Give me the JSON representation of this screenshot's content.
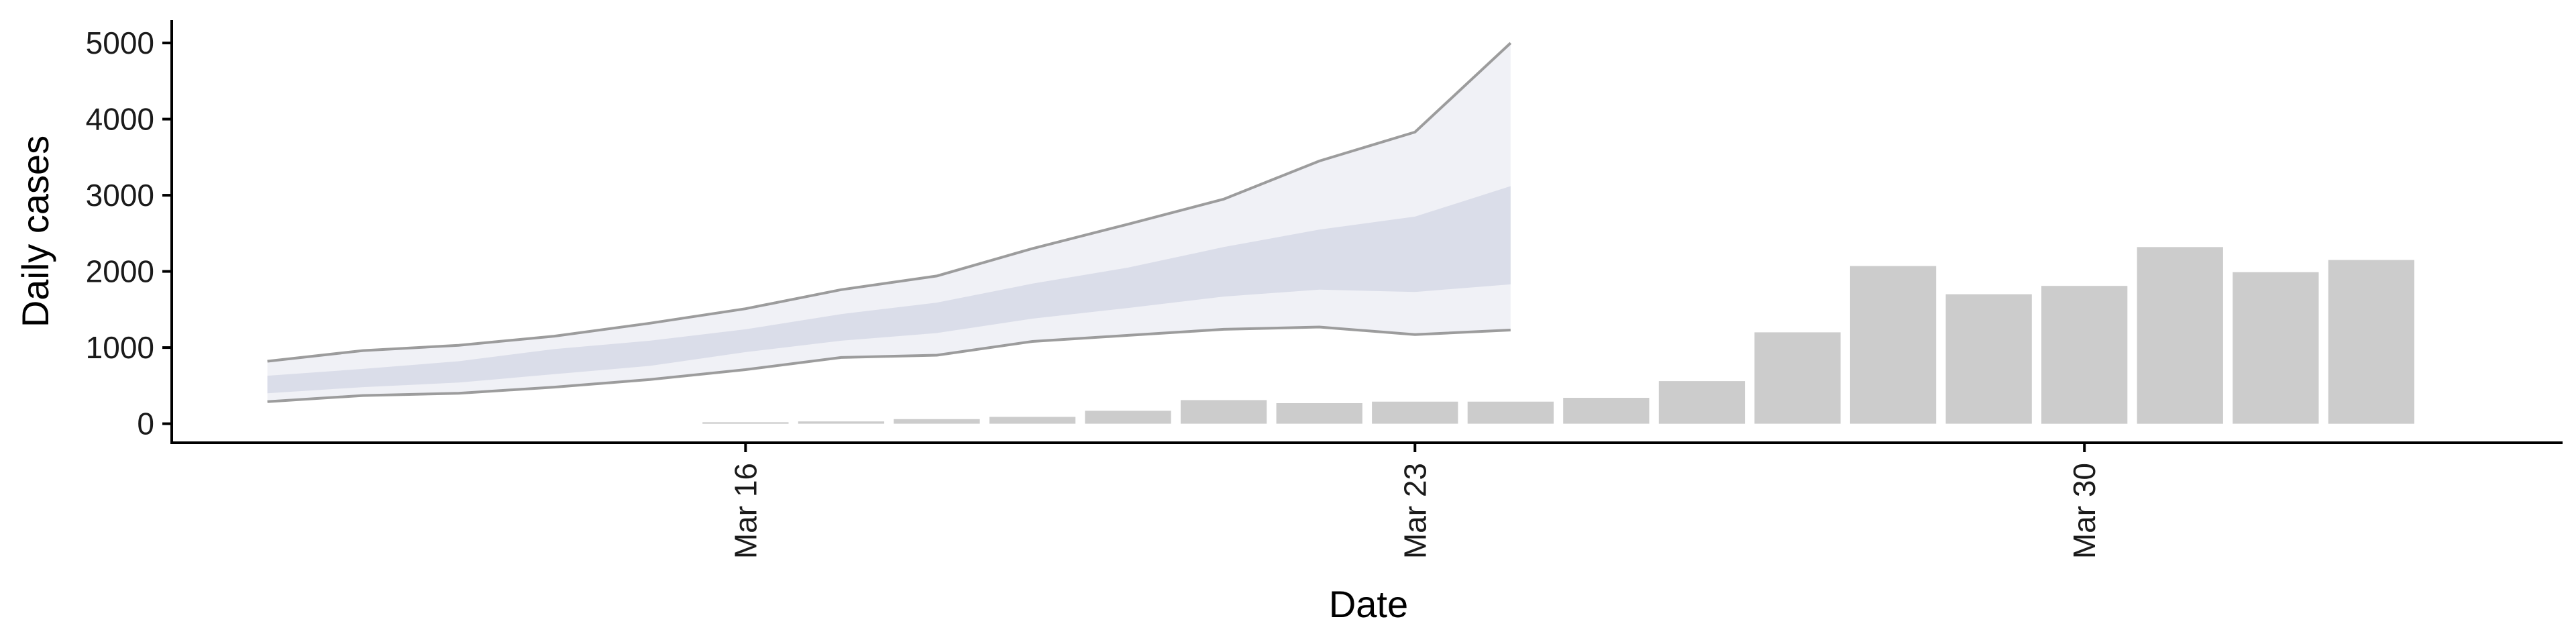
{
  "chart_data": {
    "type": "bar",
    "xlabel": "Date",
    "ylabel": "Daily cases",
    "ylim": [
      -250,
      5300
    ],
    "yticks": [
      0,
      1000,
      2000,
      3000,
      4000,
      5000
    ],
    "xticks": [
      {
        "date": "2020-03-16",
        "label": "Mar 16"
      },
      {
        "date": "2020-03-23",
        "label": "Mar 23"
      },
      {
        "date": "2020-03-30",
        "label": "Mar 30"
      }
    ],
    "xlim": [
      "2020-03-10",
      "2020-04-04"
    ],
    "grid": false,
    "legend": "none",
    "bars": {
      "color": "#cccccc",
      "points": [
        {
          "date": "2020-03-16",
          "value": 20
        },
        {
          "date": "2020-03-17",
          "value": 30
        },
        {
          "date": "2020-03-18",
          "value": 60
        },
        {
          "date": "2020-03-19",
          "value": 90
        },
        {
          "date": "2020-03-20",
          "value": 170
        },
        {
          "date": "2020-03-21",
          "value": 310
        },
        {
          "date": "2020-03-22",
          "value": 270
        },
        {
          "date": "2020-03-23",
          "value": 290
        },
        {
          "date": "2020-03-24",
          "value": 290
        },
        {
          "date": "2020-03-25",
          "value": 340
        },
        {
          "date": "2020-03-26",
          "value": 560
        },
        {
          "date": "2020-03-27",
          "value": 1200
        },
        {
          "date": "2020-03-28",
          "value": 2070
        },
        {
          "date": "2020-03-29",
          "value": 1700
        },
        {
          "date": "2020-03-30",
          "value": 1810
        },
        {
          "date": "2020-03-31",
          "value": 2320
        },
        {
          "date": "2020-04-01",
          "value": 1990
        },
        {
          "date": "2020-04-02",
          "value": 2150
        }
      ]
    },
    "ribbons": {
      "dates": [
        "2020-03-11",
        "2020-03-12",
        "2020-03-13",
        "2020-03-14",
        "2020-03-15",
        "2020-03-16",
        "2020-03-17",
        "2020-03-18",
        "2020-03-19",
        "2020-03-20",
        "2020-03-21",
        "2020-03-22",
        "2020-03-23",
        "2020-03-24"
      ],
      "outer_lower": [
        290,
        370,
        400,
        480,
        580,
        710,
        870,
        900,
        1080,
        1160,
        1240,
        1270,
        1170,
        1230
      ],
      "outer_upper": [
        820,
        960,
        1030,
        1150,
        1320,
        1510,
        1760,
        1940,
        2300,
        2620,
        2950,
        3450,
        3830,
        5000
      ],
      "inner_lower": [
        400,
        480,
        540,
        650,
        760,
        940,
        1090,
        1190,
        1380,
        1520,
        1670,
        1760,
        1730,
        1830
      ],
      "inner_upper": [
        630,
        720,
        820,
        980,
        1090,
        1240,
        1440,
        1590,
        1840,
        2050,
        2320,
        2550,
        2720,
        3120
      ],
      "outer_fill": "#eceef4",
      "inner_fill": "#d3d6e4",
      "line_color": "#8c8c8c"
    }
  }
}
